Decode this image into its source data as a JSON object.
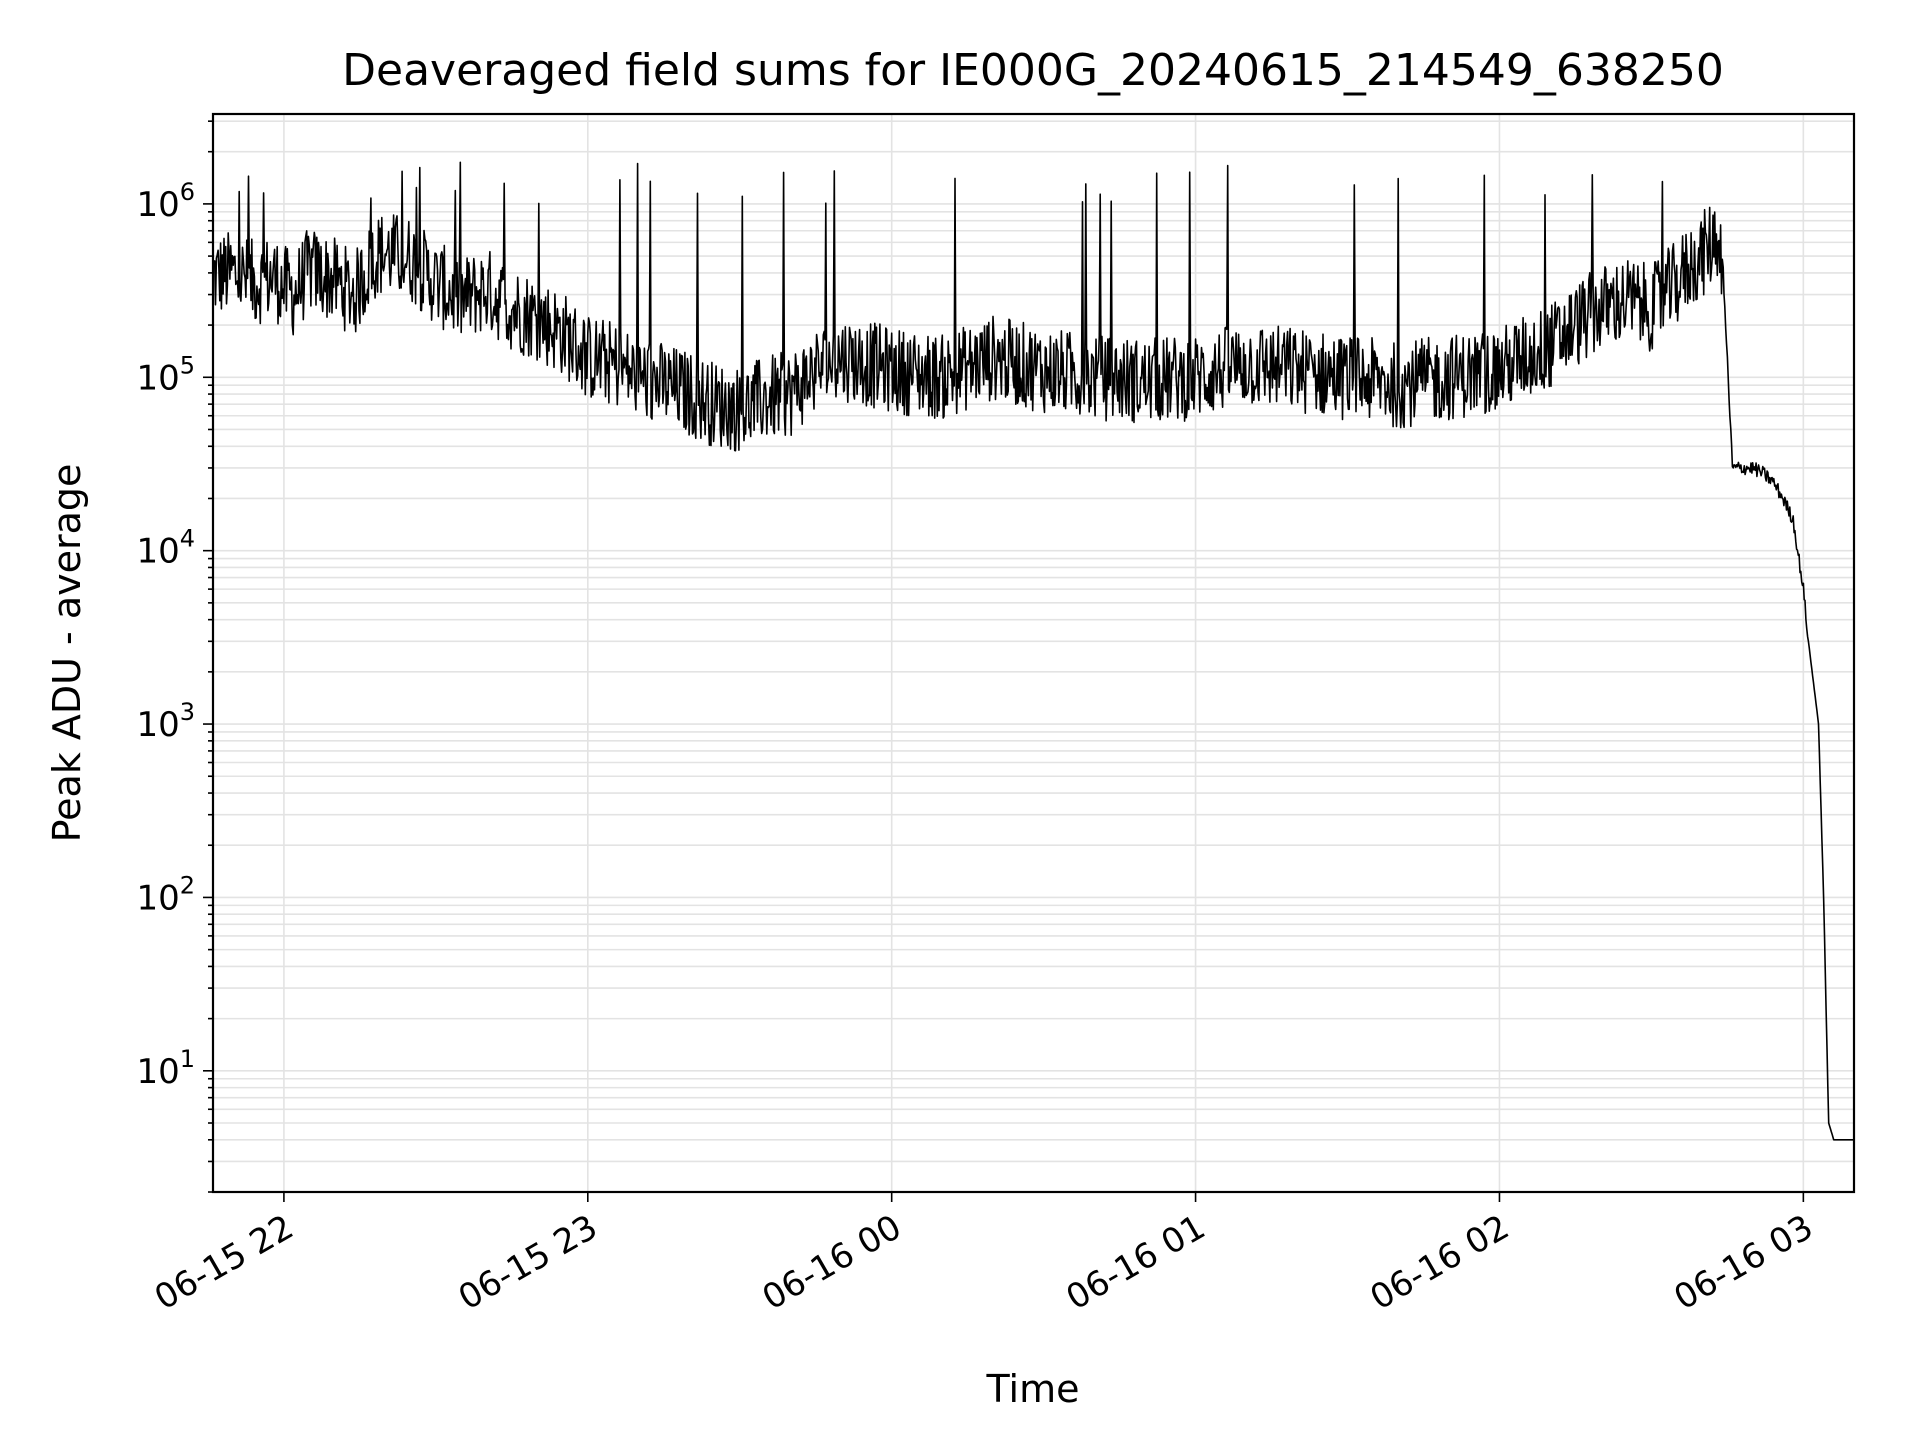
{
  "chart_data": {
    "type": "line",
    "title": "Deaveraged field sums for IE000G_20240615_214549_638250",
    "xlabel": "Time",
    "ylabel": "Peak ADU - average",
    "y_scale": "log",
    "ylim": [
      2,
      3300000
    ],
    "xlim": [
      "2024-06-15 21:46",
      "2024-06-16 03:10"
    ],
    "grid": true,
    "x_ticks": [
      {
        "time": "2024-06-15 22:00",
        "label": "06-15 22"
      },
      {
        "time": "2024-06-15 23:00",
        "label": "06-15 23"
      },
      {
        "time": "2024-06-16 00:00",
        "label": "06-16 00"
      },
      {
        "time": "2024-06-16 01:00",
        "label": "06-16 01"
      },
      {
        "time": "2024-06-16 02:00",
        "label": "06-16 02"
      },
      {
        "time": "2024-06-16 03:00",
        "label": "06-16 03"
      }
    ],
    "y_ticks": [
      {
        "value": 10,
        "base": "10",
        "exp": "1"
      },
      {
        "value": 100,
        "base": "10",
        "exp": "2"
      },
      {
        "value": 1000,
        "base": "10",
        "exp": "3"
      },
      {
        "value": 10000,
        "base": "10",
        "exp": "4"
      },
      {
        "value": 100000,
        "base": "10",
        "exp": "5"
      },
      {
        "value": 1000000,
        "base": "10",
        "exp": "6"
      }
    ],
    "series": [
      {
        "color": "#000000",
        "x": [
          "2024-06-15 21:46",
          "2024-06-15 21:50",
          "2024-06-15 21:54",
          "2024-06-15 21:58",
          "2024-06-15 22:00",
          "2024-06-15 22:02",
          "2024-06-15 22:05",
          "2024-06-15 22:10",
          "2024-06-15 22:14",
          "2024-06-15 22:18",
          "2024-06-15 22:20",
          "2024-06-15 22:25",
          "2024-06-15 22:30",
          "2024-06-15 22:35",
          "2024-06-15 22:40",
          "2024-06-15 22:45",
          "2024-06-15 22:50",
          "2024-06-15 22:55",
          "2024-06-15 23:00",
          "2024-06-15 23:05",
          "2024-06-15 23:10",
          "2024-06-15 23:15",
          "2024-06-15 23:20",
          "2024-06-15 23:25",
          "2024-06-15 23:30",
          "2024-06-15 23:35",
          "2024-06-15 23:40",
          "2024-06-15 23:45",
          "2024-06-15 23:50",
          "2024-06-15 23:55",
          "2024-06-16 00:00",
          "2024-06-16 00:10",
          "2024-06-16 00:20",
          "2024-06-16 00:30",
          "2024-06-16 00:40",
          "2024-06-16 00:50",
          "2024-06-16 01:00",
          "2024-06-16 01:10",
          "2024-06-16 01:20",
          "2024-06-16 01:30",
          "2024-06-16 01:40",
          "2024-06-16 01:50",
          "2024-06-16 02:00",
          "2024-06-16 02:05",
          "2024-06-16 02:10",
          "2024-06-16 02:15",
          "2024-06-16 02:20",
          "2024-06-16 02:25",
          "2024-06-16 02:30",
          "2024-06-16 02:35",
          "2024-06-16 02:38",
          "2024-06-16 02:40",
          "2024-06-16 02:41",
          "2024-06-16 02:42",
          "2024-06-16 02:43",
          "2024-06-16 02:44",
          "2024-06-16 02:46",
          "2024-06-16 02:48",
          "2024-06-16 02:50",
          "2024-06-16 02:52",
          "2024-06-16 02:54",
          "2024-06-16 02:56",
          "2024-06-16 02:58",
          "2024-06-16 03:00",
          "2024-06-16 03:01",
          "2024-06-16 03:03",
          "2024-06-16 03:04",
          "2024-06-16 03:05",
          "2024-06-16 03:06",
          "2024-06-16 03:07",
          "2024-06-16 03:08",
          "2024-06-16 03:10"
        ],
        "y": [
          380000,
          400000,
          350000,
          380000,
          330000,
          300000,
          420000,
          360000,
          300000,
          500000,
          520000,
          480000,
          350000,
          280000,
          320000,
          250000,
          220000,
          180000,
          130000,
          120000,
          100000,
          90000,
          80000,
          70000,
          65000,
          75000,
          80000,
          110000,
          130000,
          120000,
          110000,
          100000,
          130000,
          110000,
          100000,
          95000,
          100000,
          120000,
          110000,
          100000,
          90000,
          100000,
          110000,
          130000,
          150000,
          200000,
          250000,
          280000,
          250000,
          350000,
          450000,
          500000,
          550000,
          600000,
          650000,
          500000,
          30000,
          30000,
          30000,
          28000,
          25000,
          20000,
          15000,
          6000,
          3000,
          1000,
          100,
          5,
          4,
          4,
          4,
          4
        ]
      }
    ]
  }
}
